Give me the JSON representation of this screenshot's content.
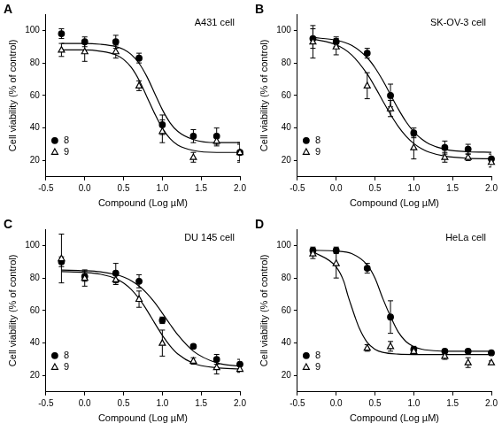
{
  "chart_data": [
    {
      "panel": "A",
      "type": "line",
      "annotation": "A431 cell",
      "x_label": "Compound (Log µM)",
      "y_label": "Cell viability (% of control)",
      "xlim": [
        -0.5,
        2.0
      ],
      "xticks": [
        -0.5,
        {
          "value": 0,
          "label": "0.0"
        },
        0.5,
        {
          "value": 1,
          "label": "1.0"
        },
        1.5,
        {
          "value": 2,
          "label": "2.0"
        }
      ],
      "ylim": [
        10,
        110
      ],
      "yticks": [
        20,
        40,
        60,
        80,
        100
      ],
      "grid": false,
      "legend": "bottom left",
      "x": [
        -0.3,
        0,
        0.4,
        0.7,
        1.0,
        1.4,
        1.7,
        2.0
      ],
      "series": [
        {
          "name": "8",
          "color": "#000000",
          "marker": "circle",
          "values": [
            98,
            93,
            93,
            83,
            42,
            35,
            35,
            25
          ],
          "errors": [
            3,
            3,
            4,
            3,
            6,
            4,
            5,
            5
          ],
          "fit": {
            "x": [
              -0.3,
              0,
              0.2,
              0.4,
              0.5,
              0.6,
              0.7,
              0.8,
              0.9,
              1.0,
              1.1,
              1.2,
              1.4,
              1.7,
              2.0
            ],
            "values": [
              92,
              92,
              91.5,
              90.1,
              88.4,
              85.2,
              79.8,
              71.7,
              61.5,
              51.3,
              43.2,
              37.9,
              32.9,
              31,
              31
            ]
          }
        },
        {
          "name": "9",
          "color": "#000000",
          "marker": "triangle_open",
          "values": [
            88,
            87,
            87,
            66,
            38,
            22,
            32,
            25
          ],
          "errors": [
            4,
            6,
            4,
            3,
            7,
            3,
            3,
            6
          ],
          "fit": {
            "x": [
              -0.3,
              0,
              0.2,
              0.4,
              0.5,
              0.6,
              0.7,
              0.8,
              0.9,
              1.0,
              1.1,
              1.2,
              1.4,
              1.7,
              2.0
            ],
            "values": [
              88,
              88,
              87.2,
              85.0,
              82.2,
              77.3,
              69.5,
              59.3,
              49.0,
              39.9,
              33.5,
              29.5,
              26.2,
              25,
              25
            ]
          }
        }
      ]
    },
    {
      "panel": "B",
      "type": "line",
      "annotation": "SK-OV-3 cell",
      "x_label": "Compound (Log µM)",
      "y_label": "Cell viability (% of control)",
      "xlim": [
        -0.5,
        2.0
      ],
      "xticks": [
        -0.5,
        {
          "value": 0,
          "label": "0.0"
        },
        0.5,
        {
          "value": 1,
          "label": "1.0"
        },
        1.5,
        {
          "value": 2,
          "label": "2.0"
        }
      ],
      "ylim": [
        10,
        110
      ],
      "yticks": [
        20,
        40,
        60,
        80,
        100
      ],
      "grid": false,
      "legend": "bottom left",
      "x": [
        -0.3,
        0,
        0.4,
        0.7,
        1.0,
        1.4,
        1.7,
        2.0
      ],
      "series": [
        {
          "name": "8",
          "color": "#000000",
          "marker": "circle",
          "values": [
            95,
            93,
            86,
            60,
            37,
            28,
            27,
            21
          ],
          "errors": [
            6,
            3,
            3,
            7,
            3,
            4,
            3,
            3
          ],
          "fit": {
            "x": [
              -0.3,
              0,
              0.2,
              0.4,
              0.5,
              0.6,
              0.7,
              0.8,
              0.9,
              1.0,
              1.1,
              1.2,
              1.4,
              1.7,
              2.0
            ],
            "values": [
              95.6,
              94.0,
              90.8,
              83.2,
              77.1,
              69.3,
              60.5,
              51.7,
              43.9,
              37.7,
              33.3,
              30.2,
              27.0,
              25.4,
              25.1
            ]
          }
        },
        {
          "name": "9",
          "color": "#000000",
          "marker": "triangle_open",
          "values": [
            93,
            90,
            66,
            52,
            28,
            22,
            22,
            19
          ],
          "errors": [
            10,
            5,
            8,
            5,
            7,
            3,
            2,
            3
          ],
          "fit": {
            "x": [
              -0.3,
              0,
              0.2,
              0.4,
              0.5,
              0.6,
              0.7,
              0.8,
              0.9,
              1.0,
              1.1,
              1.2,
              1.4,
              1.7,
              2.0
            ],
            "values": [
              94.7,
              91.2,
              84.9,
              73.2,
              65.3,
              56.7,
              48.4,
              41.0,
              35.0,
              30.5,
              27.3,
              25.1,
              22.7,
              21.4,
              21.1
            ]
          }
        }
      ]
    },
    {
      "panel": "C",
      "type": "line",
      "annotation": "DU 145 cell",
      "x_label": "Compound (Log µM)",
      "y_label": "Cell viability (% of control)",
      "xlim": [
        -0.5,
        2.0
      ],
      "xticks": [
        -0.5,
        {
          "value": 0,
          "label": "0.0"
        },
        0.5,
        {
          "value": 1,
          "label": "1.0"
        },
        1.5,
        {
          "value": 2,
          "label": "2.0"
        }
      ],
      "ylim": [
        10,
        110
      ],
      "yticks": [
        20,
        40,
        60,
        80,
        100
      ],
      "grid": false,
      "legend": "bottom left",
      "x": [
        -0.3,
        0,
        0.4,
        0.7,
        1.0,
        1.4,
        1.7,
        2.0
      ],
      "series": [
        {
          "name": "8",
          "color": "#000000",
          "marker": "circle",
          "values": [
            90,
            81,
            83,
            78,
            54,
            38,
            30,
            27
          ],
          "errors": [
            3,
            3,
            6,
            4,
            2,
            1,
            3,
            3
          ],
          "fit": {
            "x": [
              -0.3,
              0,
              0.2,
              0.4,
              0.5,
              0.6,
              0.7,
              0.8,
              0.9,
              1.0,
              1.1,
              1.2,
              1.4,
              1.7,
              2.0
            ],
            "values": [
              84.9,
              84.5,
              83.8,
              82.1,
              80.6,
              78.3,
              75.0,
              70.6,
              65.0,
              58.4,
              51.5,
              45.0,
              35.0,
              27.9,
              25.7
            ]
          }
        },
        {
          "name": "9",
          "color": "#000000",
          "marker": "triangle_open",
          "values": [
            92,
            80,
            79,
            67,
            40,
            29,
            25,
            24
          ],
          "errors": [
            15,
            5,
            3,
            5,
            8,
            2,
            4,
            2
          ],
          "fit": {
            "x": [
              -0.3,
              0,
              0.2,
              0.4,
              0.5,
              0.6,
              0.7,
              0.8,
              0.9,
              1.0,
              1.1,
              1.2,
              1.4,
              1.7,
              2.0
            ],
            "values": [
              83.9,
              83.4,
              82.4,
              79.6,
              76.9,
              72.9,
              67.3,
              60.3,
              52.4,
              44.8,
              38.3,
              33.3,
              27.6,
              24.8,
              24.1
            ]
          }
        }
      ]
    },
    {
      "panel": "D",
      "type": "line",
      "annotation": "HeLa cell",
      "x_label": "Compound (Log µM)",
      "y_label": "Cell viability (% of control)",
      "xlim": [
        -0.5,
        2.0
      ],
      "xticks": [
        -0.5,
        {
          "value": 0,
          "label": "0.0"
        },
        0.5,
        {
          "value": 1,
          "label": "1.0"
        },
        1.5,
        {
          "value": 2,
          "label": "2.0"
        }
      ],
      "ylim": [
        10,
        110
      ],
      "yticks": [
        20,
        40,
        60,
        80,
        100
      ],
      "grid": false,
      "legend": "bottom left",
      "x": [
        -0.3,
        0,
        0.4,
        0.7,
        1.0,
        1.4,
        1.7,
        2.0
      ],
      "series": [
        {
          "name": "8",
          "color": "#000000",
          "marker": "circle",
          "values": [
            97,
            97,
            86,
            56,
            36,
            35,
            35,
            34
          ],
          "errors": [
            2,
            2,
            3,
            10,
            2,
            1,
            1,
            1
          ],
          "fit": {
            "x": [
              -0.3,
              0,
              0.2,
              0.4,
              0.5,
              0.6,
              0.7,
              0.8,
              0.9,
              1.0,
              1.1,
              1.2,
              1.4,
              1.7,
              2.0
            ],
            "values": [
              97,
              96.6,
              95.0,
              88.0,
              79.9,
              67.5,
              56.4,
              46.8,
              40.9,
              37.8,
              36.3,
              35.6,
              35,
              35,
              35
            ]
          }
        },
        {
          "name": "9",
          "color": "#000000",
          "marker": "triangle_open",
          "values": [
            95,
            89,
            37,
            38,
            35,
            32,
            28,
            28
          ],
          "errors": [
            3,
            9,
            2,
            3,
            2,
            2,
            3,
            1
          ],
          "fit": {
            "x": [
              -0.3,
              0,
              0.1,
              0.15,
              0.2,
              0.25,
              0.3,
              0.4,
              0.5,
              0.6,
              0.8,
              1.0,
              1.4,
              2.0
            ],
            "values": [
              96.2,
              86.8,
              77.7,
              69.4,
              62.1,
              55.1,
              48.9,
              40.4,
              36.2,
              34.3,
              33.2,
              33,
              33,
              33
            ]
          }
        }
      ]
    }
  ]
}
